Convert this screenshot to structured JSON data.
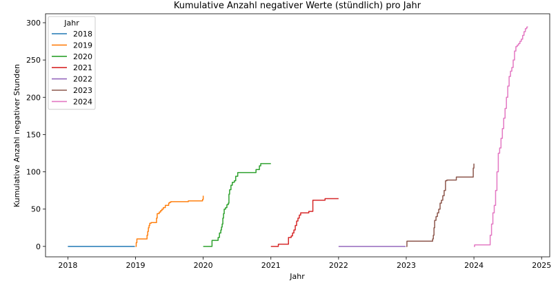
{
  "chart_data": {
    "type": "line",
    "title": "Kumulative Anzahl negativer Werte (stündlich) pro Jahr",
    "xlabel": "Jahr",
    "ylabel": "Kumulative Anzahl negativer Stunden",
    "xlim": [
      2017.67,
      2025.12
    ],
    "ylim": [
      -14,
      312
    ],
    "xticks": [
      2018,
      2019,
      2020,
      2021,
      2022,
      2023,
      2024,
      2025
    ],
    "xtick_labels": [
      "2018",
      "2019",
      "2020",
      "2021",
      "2022",
      "2023",
      "2024",
      "2025"
    ],
    "yticks": [
      0,
      50,
      100,
      150,
      200,
      250,
      300
    ],
    "ytick_labels": [
      "0",
      "50",
      "100",
      "150",
      "200",
      "250",
      "300"
    ],
    "grid": false,
    "legend": {
      "title": "Jahr",
      "position": "upper-left"
    },
    "series": [
      {
        "name": "2018",
        "color": "#1f77b4",
        "x": [
          2018.0,
          2018.99
        ],
        "y": [
          0,
          0
        ]
      },
      {
        "name": "2019",
        "color": "#ff7f0e",
        "x": [
          2019.0,
          2019.01,
          2019.02,
          2019.16,
          2019.17,
          2019.18,
          2019.19,
          2019.2,
          2019.21,
          2019.22,
          2019.23,
          2019.3,
          2019.31,
          2019.32,
          2019.35,
          2019.37,
          2019.39,
          2019.41,
          2019.44,
          2019.46,
          2019.49,
          2019.5,
          2019.52,
          2019.76,
          2019.78,
          2019.98,
          2019.99,
          2020.0
        ],
        "y": [
          0,
          5,
          10,
          10,
          15,
          20,
          25,
          28,
          31,
          31,
          32,
          32,
          38,
          44,
          46,
          48,
          50,
          52,
          55,
          55,
          58,
          59,
          60,
          60,
          61,
          61,
          63,
          68
        ]
      },
      {
        "name": "2020",
        "color": "#2ca02c",
        "x": [
          2020.0,
          2020.12,
          2020.13,
          2020.2,
          2020.22,
          2020.24,
          2020.26,
          2020.27,
          2020.28,
          2020.29,
          2020.3,
          2020.31,
          2020.33,
          2020.35,
          2020.37,
          2020.38,
          2020.39,
          2020.41,
          2020.43,
          2020.45,
          2020.46,
          2020.48,
          2020.51,
          2020.76,
          2020.78,
          2020.81,
          2020.83,
          2020.85,
          2021.0
        ],
        "y": [
          0,
          0,
          8,
          8,
          12,
          18,
          22,
          26,
          30,
          38,
          44,
          50,
          52,
          56,
          58,
          70,
          76,
          82,
          86,
          86,
          88,
          94,
          99,
          99,
          103,
          103,
          108,
          111,
          111
        ]
      },
      {
        "name": "2021",
        "color": "#d62728",
        "x": [
          2021.0,
          2021.1,
          2021.11,
          2021.25,
          2021.26,
          2021.3,
          2021.32,
          2021.34,
          2021.36,
          2021.38,
          2021.4,
          2021.42,
          2021.44,
          2021.54,
          2021.56,
          2021.6,
          2021.62,
          2021.78,
          2021.8,
          2022.0
        ],
        "y": [
          0,
          0,
          3,
          3,
          12,
          14,
          18,
          22,
          28,
          34,
          38,
          42,
          45,
          45,
          47,
          47,
          62,
          62,
          64,
          64
        ]
      },
      {
        "name": "2022",
        "color": "#9467bd",
        "x": [
          2022.0,
          2022.99
        ],
        "y": [
          0,
          0
        ]
      },
      {
        "name": "2023",
        "color": "#8c564b",
        "x": [
          2023.0,
          2023.01,
          2023.38,
          2023.39,
          2023.4,
          2023.41,
          2023.42,
          2023.44,
          2023.46,
          2023.48,
          2023.5,
          2023.52,
          2023.54,
          2023.56,
          2023.58,
          2023.6,
          2023.72,
          2023.74,
          2023.98,
          2023.99,
          2024.0
        ],
        "y": [
          0,
          7,
          7,
          10,
          15,
          25,
          35,
          40,
          45,
          50,
          58,
          62,
          68,
          75,
          88,
          89,
          89,
          93,
          93,
          105,
          111
        ]
      },
      {
        "name": "2024",
        "color": "#e377c2",
        "x": [
          2024.0,
          2024.01,
          2024.22,
          2024.24,
          2024.26,
          2024.28,
          2024.3,
          2024.32,
          2024.34,
          2024.36,
          2024.38,
          2024.4,
          2024.42,
          2024.44,
          2024.46,
          2024.48,
          2024.5,
          2024.52,
          2024.54,
          2024.56,
          2024.58,
          2024.6,
          2024.62,
          2024.64,
          2024.66,
          2024.68,
          2024.7,
          2024.72,
          2024.74,
          2024.76,
          2024.78,
          2024.79
        ],
        "y": [
          0,
          2,
          2,
          15,
          30,
          45,
          55,
          75,
          100,
          125,
          132,
          145,
          158,
          172,
          185,
          200,
          215,
          228,
          235,
          240,
          250,
          262,
          268,
          270,
          272,
          275,
          278,
          283,
          288,
          292,
          294,
          295
        ]
      }
    ]
  }
}
